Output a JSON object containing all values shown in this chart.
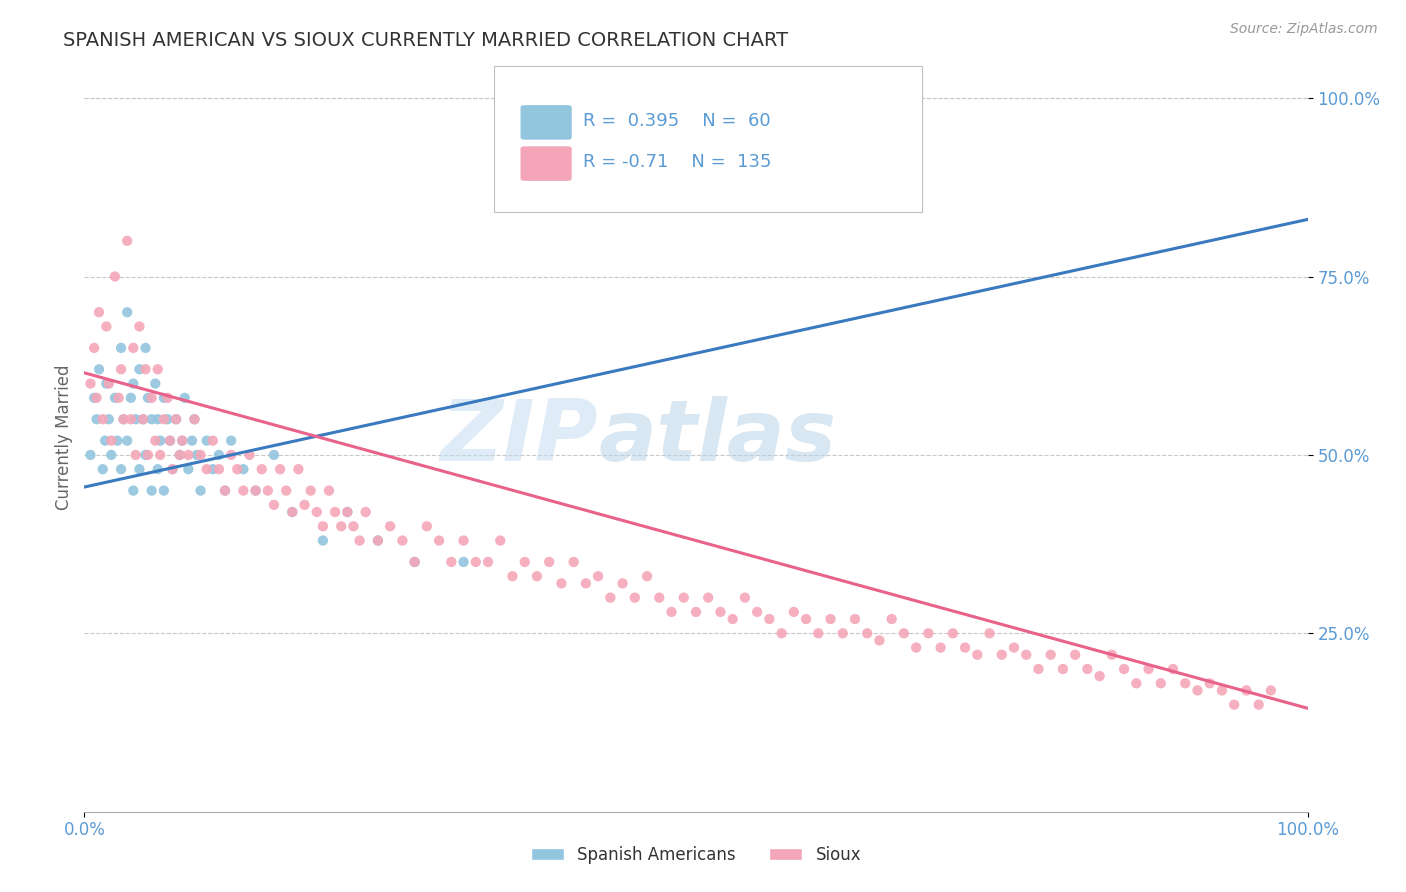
{
  "title": "SPANISH AMERICAN VS SIOUX CURRENTLY MARRIED CORRELATION CHART",
  "source_text": "Source: ZipAtlas.com",
  "ylabel": "Currently Married",
  "x_min": 0.0,
  "x_max": 1.0,
  "y_min": 0.0,
  "y_max": 1.05,
  "y_ticks": [
    0.25,
    0.5,
    0.75,
    1.0
  ],
  "y_tick_labels": [
    "25.0%",
    "50.0%",
    "75.0%",
    "100.0%"
  ],
  "blue_color": "#92c5de",
  "pink_color": "#f4a6b8",
  "blue_line_color": "#3a7abf",
  "pink_line_color": "#e8628a",
  "R_blue": 0.395,
  "N_blue": 60,
  "R_pink": -0.71,
  "N_pink": 135,
  "legend_label_blue": "Spanish Americans",
  "legend_label_pink": "Sioux",
  "watermark_part1": "ZIP",
  "watermark_part2": "atlas",
  "blue_line_y_start": 0.455,
  "blue_line_y_end": 0.83,
  "pink_line_y_start": 0.615,
  "pink_line_y_end": 0.145,
  "blue_scatter_x": [
    0.005,
    0.008,
    0.01,
    0.012,
    0.015,
    0.017,
    0.018,
    0.02,
    0.022,
    0.025,
    0.027,
    0.03,
    0.03,
    0.032,
    0.035,
    0.035,
    0.038,
    0.04,
    0.04,
    0.042,
    0.045,
    0.045,
    0.048,
    0.05,
    0.05,
    0.052,
    0.055,
    0.055,
    0.058,
    0.06,
    0.06,
    0.062,
    0.065,
    0.065,
    0.068,
    0.07,
    0.072,
    0.075,
    0.078,
    0.08,
    0.082,
    0.085,
    0.088,
    0.09,
    0.092,
    0.095,
    0.1,
    0.105,
    0.11,
    0.115,
    0.12,
    0.13,
    0.14,
    0.155,
    0.17,
    0.195,
    0.215,
    0.24,
    0.27,
    0.31
  ],
  "blue_scatter_y": [
    0.5,
    0.58,
    0.55,
    0.62,
    0.48,
    0.52,
    0.6,
    0.55,
    0.5,
    0.58,
    0.52,
    0.65,
    0.48,
    0.55,
    0.7,
    0.52,
    0.58,
    0.6,
    0.45,
    0.55,
    0.62,
    0.48,
    0.55,
    0.65,
    0.5,
    0.58,
    0.55,
    0.45,
    0.6,
    0.55,
    0.48,
    0.52,
    0.58,
    0.45,
    0.55,
    0.52,
    0.48,
    0.55,
    0.5,
    0.52,
    0.58,
    0.48,
    0.52,
    0.55,
    0.5,
    0.45,
    0.52,
    0.48,
    0.5,
    0.45,
    0.52,
    0.48,
    0.45,
    0.5,
    0.42,
    0.38,
    0.42,
    0.38,
    0.35,
    0.35
  ],
  "pink_scatter_x": [
    0.005,
    0.008,
    0.01,
    0.012,
    0.015,
    0.018,
    0.02,
    0.022,
    0.025,
    0.028,
    0.03,
    0.032,
    0.035,
    0.038,
    0.04,
    0.042,
    0.045,
    0.048,
    0.05,
    0.052,
    0.055,
    0.058,
    0.06,
    0.062,
    0.065,
    0.068,
    0.07,
    0.072,
    0.075,
    0.078,
    0.08,
    0.085,
    0.09,
    0.095,
    0.1,
    0.105,
    0.11,
    0.115,
    0.12,
    0.125,
    0.13,
    0.135,
    0.14,
    0.145,
    0.15,
    0.155,
    0.16,
    0.165,
    0.17,
    0.175,
    0.18,
    0.185,
    0.19,
    0.195,
    0.2,
    0.205,
    0.21,
    0.215,
    0.22,
    0.225,
    0.23,
    0.24,
    0.25,
    0.26,
    0.27,
    0.28,
    0.29,
    0.3,
    0.31,
    0.32,
    0.33,
    0.34,
    0.35,
    0.36,
    0.37,
    0.38,
    0.39,
    0.4,
    0.41,
    0.42,
    0.43,
    0.44,
    0.45,
    0.46,
    0.47,
    0.48,
    0.49,
    0.5,
    0.51,
    0.52,
    0.53,
    0.54,
    0.55,
    0.56,
    0.57,
    0.58,
    0.59,
    0.6,
    0.61,
    0.62,
    0.63,
    0.64,
    0.65,
    0.66,
    0.67,
    0.68,
    0.69,
    0.7,
    0.71,
    0.72,
    0.73,
    0.74,
    0.75,
    0.76,
    0.77,
    0.78,
    0.79,
    0.8,
    0.81,
    0.82,
    0.83,
    0.84,
    0.85,
    0.86,
    0.87,
    0.88,
    0.89,
    0.9,
    0.91,
    0.92,
    0.93,
    0.94,
    0.95,
    0.96,
    0.97
  ],
  "pink_scatter_y": [
    0.6,
    0.65,
    0.58,
    0.7,
    0.55,
    0.68,
    0.6,
    0.52,
    0.75,
    0.58,
    0.62,
    0.55,
    0.8,
    0.55,
    0.65,
    0.5,
    0.68,
    0.55,
    0.62,
    0.5,
    0.58,
    0.52,
    0.62,
    0.5,
    0.55,
    0.58,
    0.52,
    0.48,
    0.55,
    0.5,
    0.52,
    0.5,
    0.55,
    0.5,
    0.48,
    0.52,
    0.48,
    0.45,
    0.5,
    0.48,
    0.45,
    0.5,
    0.45,
    0.48,
    0.45,
    0.43,
    0.48,
    0.45,
    0.42,
    0.48,
    0.43,
    0.45,
    0.42,
    0.4,
    0.45,
    0.42,
    0.4,
    0.42,
    0.4,
    0.38,
    0.42,
    0.38,
    0.4,
    0.38,
    0.35,
    0.4,
    0.38,
    0.35,
    0.38,
    0.35,
    0.35,
    0.38,
    0.33,
    0.35,
    0.33,
    0.35,
    0.32,
    0.35,
    0.32,
    0.33,
    0.3,
    0.32,
    0.3,
    0.33,
    0.3,
    0.28,
    0.3,
    0.28,
    0.3,
    0.28,
    0.27,
    0.3,
    0.28,
    0.27,
    0.25,
    0.28,
    0.27,
    0.25,
    0.27,
    0.25,
    0.27,
    0.25,
    0.24,
    0.27,
    0.25,
    0.23,
    0.25,
    0.23,
    0.25,
    0.23,
    0.22,
    0.25,
    0.22,
    0.23,
    0.22,
    0.2,
    0.22,
    0.2,
    0.22,
    0.2,
    0.19,
    0.22,
    0.2,
    0.18,
    0.2,
    0.18,
    0.2,
    0.18,
    0.17,
    0.18,
    0.17,
    0.15,
    0.17,
    0.15,
    0.17
  ],
  "background_color": "#ffffff",
  "grid_color": "#c8c8c8",
  "title_color": "#333333",
  "axis_label_color": "#666666",
  "tick_label_color": "#5b9bd5",
  "legend_border_color": "#c0c0c0",
  "legend_R_color": "#5b9bd5",
  "legend_text_color": "#333333"
}
